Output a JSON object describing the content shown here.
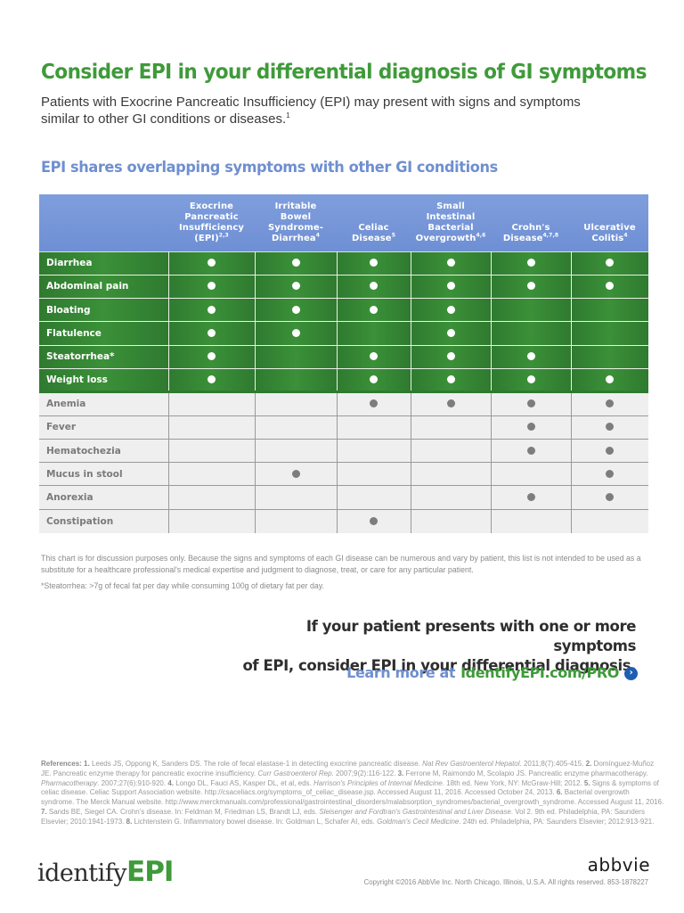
{
  "header": {
    "title": "Consider EPI in your differential diagnosis of GI symptoms",
    "intro": "Patients with Exocrine Pancreatic Insufficiency (EPI) may present with signs and symptoms similar to other GI conditions or diseases.",
    "intro_ref": "1"
  },
  "section": {
    "title": "EPI shares overlapping symptoms with other GI conditions"
  },
  "table": {
    "columns": [
      {
        "label": "",
        "refs": ""
      },
      {
        "label": "Exocrine Pancreatic Insufficiency (EPI)",
        "refs": "2,3"
      },
      {
        "label": "Irritable Bowel Syndrome-Diarrhea",
        "refs": "4"
      },
      {
        "label": "Celiac Disease",
        "refs": "5"
      },
      {
        "label": "Small Intestinal Bacterial Overgrowth",
        "refs": "4,6"
      },
      {
        "label": "Crohn's Disease",
        "refs": "4,7,8"
      },
      {
        "label": "Ulcerative Colitis",
        "refs": "4"
      }
    ],
    "rows": [
      {
        "symptom": "Diarrhea",
        "group": "primary",
        "marks": [
          1,
          1,
          1,
          1,
          1,
          1
        ]
      },
      {
        "symptom": "Abdominal pain",
        "group": "primary",
        "marks": [
          1,
          1,
          1,
          1,
          1,
          1
        ]
      },
      {
        "symptom": "Bloating",
        "group": "primary",
        "marks": [
          1,
          1,
          1,
          1,
          0,
          0
        ]
      },
      {
        "symptom": "Flatulence",
        "group": "primary",
        "marks": [
          1,
          1,
          0,
          1,
          0,
          0
        ]
      },
      {
        "symptom": "Steatorrhea*",
        "group": "primary",
        "marks": [
          1,
          0,
          1,
          1,
          1,
          0
        ]
      },
      {
        "symptom": "Weight loss",
        "group": "primary",
        "marks": [
          1,
          0,
          1,
          1,
          1,
          1
        ]
      },
      {
        "symptom": "Anemia",
        "group": "secondary",
        "marks": [
          0,
          0,
          1,
          1,
          1,
          1
        ]
      },
      {
        "symptom": "Fever",
        "group": "secondary",
        "marks": [
          0,
          0,
          0,
          0,
          1,
          1
        ]
      },
      {
        "symptom": "Hematochezia",
        "group": "secondary",
        "marks": [
          0,
          0,
          0,
          0,
          1,
          1
        ]
      },
      {
        "symptom": "Mucus in stool",
        "group": "secondary",
        "marks": [
          0,
          1,
          0,
          0,
          0,
          1
        ]
      },
      {
        "symptom": "Anorexia",
        "group": "secondary",
        "marks": [
          0,
          0,
          0,
          0,
          1,
          1
        ]
      },
      {
        "symptom": "Constipation",
        "group": "secondary",
        "marks": [
          0,
          0,
          1,
          0,
          0,
          0
        ]
      }
    ]
  },
  "notes": {
    "disclaimer": "This chart is for discussion purposes only. Because the signs and symptoms of each GI disease can be numerous and vary by patient, this list is not intended to be used as a substitute for a healthcare professional's medical expertise and judgment to diagnose, treat, or care for any particular patient.",
    "footnote": "*Steatorrhea: >7g of fecal fat per day while consuming 100g of dietary fat per day."
  },
  "cta": {
    "line1": "If your patient presents with one or more symptoms",
    "line2": "of EPI, consider EPI in your differential diagnosis.",
    "learn_prefix": "Learn more at",
    "learn_url": "IdentifyEPI.com/PRO",
    "arrow_icon": "›"
  },
  "references": {
    "label": "References:",
    "text": [
      {
        "n": "1.",
        "t": " Leeds JS, Oppong K, Sanders DS. The role of fecal elastase-1 in detecting exocrine pancreatic disease. ",
        "i": "Nat Rev Gastroenterol Hepatol",
        "a": ". 2011;8(7):405-415. "
      },
      {
        "n": "2.",
        "t": " Domínguez-Muñoz JE. Pancreatic enzyme therapy for pancreatic exocrine insufficiency. ",
        "i": "Curr Gastroenterol Rep",
        "a": ". 2007;9(2):116-122. "
      },
      {
        "n": "3.",
        "t": " Ferrone M, Raimondo M, Scolapio JS. Pancreatic enzyme pharmacotherapy. ",
        "i": "Pharmacotherapy",
        "a": ". 2007;27(6):910-920. "
      },
      {
        "n": "4.",
        "t": " Longo DL, Fauci AS, Kasper DL, et al, eds. ",
        "i": "Harrison's Principles of Internal Medicine",
        "a": ". 18th ed. New York, NY: McGraw-Hill; 2012. "
      },
      {
        "n": "5.",
        "t": " Signs & symptoms of celiac disease. Celiac Support Association website. http://csaceliacs.org/symptoms_of_celiac_disease.jsp. Accessed August 11, 2016. Accessed October 24, 2013. ",
        "i": "",
        "a": ""
      },
      {
        "n": "6.",
        "t": " Bacterial overgrowth syndrome. The Merck Manual website. http://www.merckmanuals.com/professional/gastrointestinal_disorders/malabsorption_syndromes/bacterial_overgrowth_syndrome. Accessed August 11, 2016. ",
        "i": "",
        "a": ""
      },
      {
        "n": "7.",
        "t": " Sands BE, Siegel CA. Crohn's disease. In: Feldman M, Friedman LS, Brandt LJ, eds. ",
        "i": "Sleisenger and Fordtran's Gastrointestinal and Liver Disease",
        "a": ". Vol 2. 9th ed. Philadelphia, PA: Saunders Elsevier; 2010:1941-1973. "
      },
      {
        "n": "8.",
        "t": " Lichtenstein G. Inflammatory bowel disease. In: Goldman L, Schafer AI, eds. ",
        "i": "Goldman's Cecil Medicine",
        "a": ". 24th ed. Philadelphia, PA: Saunders Elsevier; 2012:913-921."
      }
    ]
  },
  "footer": {
    "logo_part1": "identify",
    "logo_part2": "EPI",
    "brand": "abbvie",
    "copyright": "Copyright ©2016  AbbVie Inc. North Chicago, Illinois, U.S.A. All rights reserved.  853-1878227"
  },
  "colors": {
    "title_green": "#3f9a3a",
    "section_blue": "#6f8fd0",
    "header_blue": "#7f9edc",
    "primary_green": "#2f7a30",
    "secondary_gray": "#efefef",
    "dot_gray": "#7d7d7d",
    "arrow_blue": "#1f5fb2"
  }
}
